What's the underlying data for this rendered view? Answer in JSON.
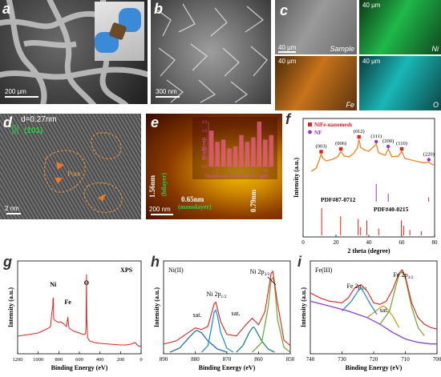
{
  "panels": {
    "a": {
      "label": "a",
      "scalebar": "200 μm"
    },
    "b": {
      "label": "b",
      "scalebar": "300 nm"
    },
    "c": {
      "label": "c",
      "maps": [
        {
          "name": "Sample",
          "scalebar": "40 μm",
          "color": "#7a7a7a"
        },
        {
          "name": "Ni",
          "scalebar": "40 μm",
          "color": "#1fb84a"
        },
        {
          "name": "Fe",
          "scalebar": "40 μm",
          "color": "#c8731a"
        },
        {
          "name": "O",
          "scalebar": "40 μm",
          "color": "#1ab7b7"
        }
      ]
    },
    "d": {
      "label": "d",
      "dspacing": "d=0.27nm",
      "plane": "(101)",
      "pore": "Pore",
      "scalebar": "2 nm"
    },
    "e": {
      "label": "e",
      "scalebar": "200 nm",
      "h1": "1.56nm",
      "h1note": "(bilayer)",
      "h2": "0.65nm",
      "h2note": "(monolayer)",
      "h3": "0.79nm"
    },
    "f": {
      "label": "f"
    },
    "g": {
      "label": "g"
    },
    "h": {
      "label": "h"
    },
    "i": {
      "label": "i"
    }
  },
  "chart_data": [
    {
      "id": "afm-height-inset",
      "type": "bar",
      "ylabel": "Height(nm)",
      "xlabel": "Numbered from left to right",
      "categories": [
        "1",
        "2",
        "3",
        "4",
        "5",
        "6",
        "7",
        "8",
        "9",
        "10",
        "11"
      ],
      "values": [
        1.6,
        1.1,
        1.2,
        0.8,
        0.9,
        1.4,
        1.1,
        1.3,
        2.0,
        1.2,
        1.4
      ],
      "xticks": [
        "2",
        "4",
        "6",
        "8",
        "10"
      ],
      "yticks": [
        "0.0",
        "0.4",
        "0.8",
        "1.2",
        "1.6",
        "2.0"
      ],
      "ylim": [
        0,
        2.0
      ]
    },
    {
      "id": "xrd",
      "type": "line",
      "xlabel": "2 theta (degree)",
      "ylabel": "Intensity (a.u.)",
      "xlim": [
        0,
        80
      ],
      "xticks": [
        "0",
        "20",
        "40",
        "60",
        "80"
      ],
      "legend": [
        {
          "name": "NiFe-nanomesh",
          "color": "#e8201c",
          "marker": "square"
        },
        {
          "name": "NF",
          "color": "#9b30d0",
          "marker": "circle"
        }
      ],
      "peak_labels": [
        {
          "text": "(003)",
          "x": 11
        },
        {
          "text": "(006)",
          "x": 23
        },
        {
          "text": "(012)",
          "x": 34
        },
        {
          "text": "(111)",
          "x": 44.5
        },
        {
          "text": "(200)",
          "x": 51.8
        },
        {
          "text": "(110)",
          "x": 60
        },
        {
          "text": "(220)",
          "x": 76.5
        }
      ],
      "curve_color": "#f08a2c",
      "series": [
        {
          "name": "NiFe-nanomesh",
          "x": [
            5,
            8,
            10,
            11,
            12,
            14,
            18,
            21,
            23,
            25,
            28,
            31,
            33,
            34,
            35,
            37,
            40,
            44.5,
            46,
            50,
            51.8,
            54,
            58,
            60,
            62,
            66,
            70,
            74,
            76.5,
            78,
            80
          ],
          "y": [
            0.12,
            0.2,
            0.42,
            0.55,
            0.45,
            0.38,
            0.42,
            0.48,
            0.62,
            0.5,
            0.48,
            0.58,
            0.7,
            0.92,
            0.72,
            0.66,
            0.62,
            0.8,
            0.58,
            0.52,
            0.68,
            0.48,
            0.5,
            0.62,
            0.44,
            0.4,
            0.36,
            0.33,
            0.35,
            0.3,
            0.28
          ]
        }
      ],
      "references": [
        {
          "name": "PDF#87-0712",
          "color": "#9b30d0",
          "lines": [
            {
              "x": 44.5,
              "h": 1.0
            },
            {
              "x": 51.8,
              "h": 0.45
            },
            {
              "x": 76.4,
              "h": 0.25
            }
          ]
        },
        {
          "name": "PDF#40-0215",
          "color": "#e8201c",
          "lines": [
            {
              "x": 11.3,
              "h": 1.0
            },
            {
              "x": 22.8,
              "h": 0.7
            },
            {
              "x": 33.5,
              "h": 0.6
            },
            {
              "x": 35.0,
              "h": 0.3
            },
            {
              "x": 38.8,
              "h": 0.55
            },
            {
              "x": 46.0,
              "h": 0.25
            },
            {
              "x": 59.8,
              "h": 0.55
            },
            {
              "x": 61.3,
              "h": 0.35
            },
            {
              "x": 65.0,
              "h": 0.2
            },
            {
              "x": 72.0,
              "h": 0.15
            }
          ]
        }
      ]
    },
    {
      "id": "xps-survey",
      "type": "line",
      "title": "XPS",
      "xlabel": "Binding Energy (eV)",
      "ylabel": "Intensity (a.u.)",
      "xlim": [
        1200,
        0
      ],
      "xticks": [
        "1200",
        "1000",
        "800",
        "600",
        "400",
        "200",
        "0"
      ],
      "annotations": [
        {
          "text": "Ni",
          "x": 855
        },
        {
          "text": "Fe",
          "x": 712
        },
        {
          "text": "O",
          "x": 531
        }
      ],
      "series": [
        {
          "name": "survey",
          "color": "#e8201c",
          "x": [
            1200,
            1100,
            1000,
            950,
            900,
            880,
            870,
            862,
            858,
            856,
            853,
            850,
            840,
            800,
            780,
            740,
            725,
            712,
            708,
            700,
            650,
            600,
            560,
            540,
            535,
            531,
            528,
            520,
            500,
            450,
            400,
            300,
            200,
            150,
            100,
            60,
            30,
            0
          ],
          "y": [
            0.18,
            0.2,
            0.22,
            0.25,
            0.28,
            0.3,
            0.45,
            0.52,
            0.56,
            0.64,
            0.66,
            0.4,
            0.38,
            0.35,
            0.36,
            0.32,
            0.3,
            0.42,
            0.36,
            0.28,
            0.24,
            0.22,
            0.2,
            0.21,
            0.3,
            0.95,
            0.4,
            0.16,
            0.12,
            0.1,
            0.09,
            0.08,
            0.07,
            0.07,
            0.08,
            0.1,
            0.06,
            0.05
          ]
        }
      ]
    },
    {
      "id": "xps-ni2p",
      "type": "line",
      "title": "Ni(II)",
      "xlabel": "Binding Energy (eV)",
      "ylabel": "Intensity (a.u.)",
      "xlim": [
        890,
        850
      ],
      "xticks": [
        "890",
        "880",
        "870",
        "860",
        "850"
      ],
      "annotations": [
        {
          "text": "Ni 2p",
          "sub": "3/2",
          "x": 856
        },
        {
          "text": "Ni 2p",
          "sub": "1/2",
          "x": 873.5
        },
        {
          "text": "sat.",
          "x": 879.5
        },
        {
          "text": "sat.",
          "x": 861.5
        }
      ],
      "series": [
        {
          "name": "data",
          "color": "#e8201c",
          "x": [
            890,
            886,
            883,
            880,
            878,
            876,
            874,
            873.5,
            872,
            870,
            867,
            864,
            862,
            860,
            858,
            856,
            855.5,
            854,
            852,
            850
          ],
          "y": [
            0.1,
            0.14,
            0.22,
            0.3,
            0.28,
            0.32,
            0.6,
            0.62,
            0.38,
            0.22,
            0.2,
            0.34,
            0.42,
            0.34,
            0.5,
            0.98,
            1.0,
            0.6,
            0.15,
            0.08
          ]
        },
        {
          "name": "Ni 2p3/2 fit",
          "color": "#7aa83a",
          "x": [
            862,
            859,
            857,
            856,
            855.5,
            855,
            854,
            852,
            850
          ],
          "y": [
            0.0,
            0.12,
            0.55,
            0.9,
            0.92,
            0.85,
            0.4,
            0.06,
            0.0
          ]
        },
        {
          "name": "Ni 2p1/2 fit",
          "color": "#2a8fd4",
          "x": [
            878,
            876,
            875,
            874,
            873.5,
            873,
            872,
            870,
            868
          ],
          "y": [
            0.0,
            0.08,
            0.28,
            0.5,
            0.52,
            0.46,
            0.25,
            0.05,
            0.0
          ]
        },
        {
          "name": "sat. fit 1",
          "color": "#2a6fb0",
          "x": [
            888,
            885,
            882,
            880,
            879.5,
            878,
            876,
            873,
            870
          ],
          "y": [
            0.0,
            0.05,
            0.18,
            0.26,
            0.27,
            0.24,
            0.14,
            0.04,
            0.0
          ]
        },
        {
          "name": "sat. fit 2",
          "color": "#1f8a6e",
          "x": [
            867,
            865,
            863,
            862,
            861.5,
            861,
            859,
            857,
            855
          ],
          "y": [
            0.0,
            0.08,
            0.24,
            0.3,
            0.31,
            0.28,
            0.14,
            0.04,
            0.0
          ]
        }
      ]
    },
    {
      "id": "xps-fe2p",
      "type": "line",
      "title": "Fe(III)",
      "xlabel": "Binding Energy (eV)",
      "ylabel": "Intensity (a.u.)",
      "xlim": [
        740,
        700
      ],
      "xticks": [
        "740",
        "730",
        "720",
        "710",
        "700"
      ],
      "annotations": [
        {
          "text": "Fe 2p",
          "sub": "1/2",
          "x": 724
        },
        {
          "text": "Fe 2p",
          "sub": "3/2",
          "x": 711
        },
        {
          "text": "sat.",
          "x": 717
        }
      ],
      "series": [
        {
          "name": "data",
          "color": "#e8201c",
          "x": [
            740,
            737,
            734,
            730,
            728,
            726,
            724,
            722,
            720,
            718,
            716,
            714,
            712,
            711,
            710,
            708,
            706,
            704,
            702,
            700
          ],
          "y": [
            0.72,
            0.66,
            0.62,
            0.6,
            0.66,
            0.78,
            0.82,
            0.74,
            0.6,
            0.58,
            0.62,
            0.76,
            0.96,
            1.0,
            0.92,
            0.6,
            0.42,
            0.34,
            0.3,
            0.28
          ]
        },
        {
          "name": "background",
          "color": "#8a3fd4",
          "x": [
            740,
            734,
            728,
            722,
            718,
            714,
            710,
            706,
            702,
            700
          ],
          "y": [
            0.62,
            0.56,
            0.5,
            0.42,
            0.34,
            0.24,
            0.16,
            0.12,
            0.1,
            0.1
          ]
        },
        {
          "name": "Fe 2p1/2 fit",
          "color": "#2a8fd4",
          "x": [
            730,
            727,
            725,
            724,
            723,
            721,
            719
          ],
          "y": [
            0.5,
            0.62,
            0.74,
            0.78,
            0.72,
            0.58,
            0.46
          ]
        },
        {
          "name": "Fe 2p3/2 fit",
          "color": "#7aa83a",
          "x": [
            718,
            715,
            713,
            712,
            711,
            710,
            708,
            706,
            704
          ],
          "y": [
            0.34,
            0.5,
            0.8,
            0.94,
            0.98,
            0.9,
            0.55,
            0.3,
            0.2
          ]
        },
        {
          "name": "sat. fit",
          "color": "#c8a020",
          "x": [
            722,
            720,
            718,
            717,
            716,
            714,
            712
          ],
          "y": [
            0.42,
            0.48,
            0.54,
            0.56,
            0.54,
            0.44,
            0.3
          ]
        }
      ]
    }
  ]
}
